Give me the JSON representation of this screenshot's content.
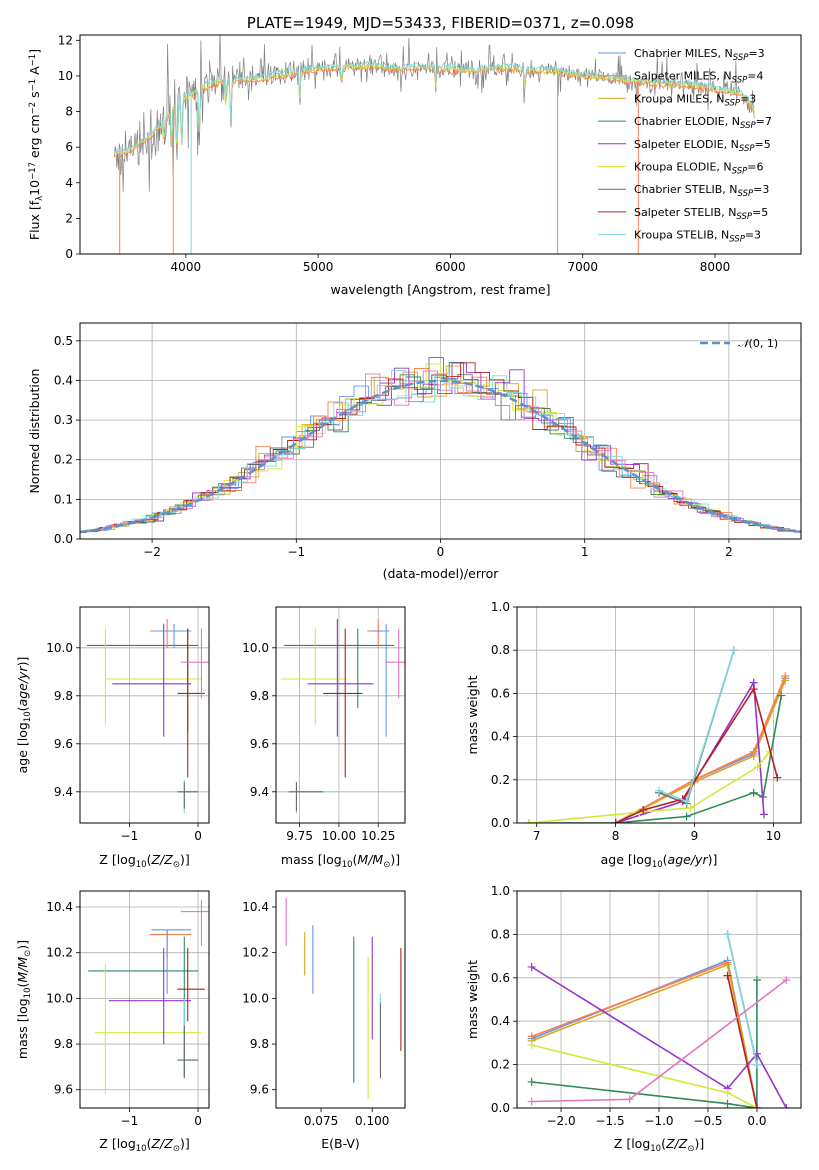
{
  "colors": {
    "chabrier_miles": "#6495ed",
    "salpeter_miles": "#ff7f50",
    "kroupa_miles": "#daa520",
    "chabrier_elodie": "#2e8b57",
    "salpeter_elodie": "#9932cc",
    "kroupa_elodie": "#d4e83c",
    "chabrier_stelib": "#6b6b6b",
    "salpeter_stelib": "#b22222",
    "kroupa_stelib": "#7fd8de",
    "pink": "#e377c2",
    "normal": "#5b8fd6"
  },
  "chart_data": [
    {
      "id": "spectrum",
      "type": "line",
      "title": "PLATE=1949, MJD=53433, FIBERID=0371, z=0.098",
      "xlabel": "wavelength [Angstrom, rest frame]",
      "ylabel": "Flux [fλ10⁻¹⁷ erg cm⁻² s⁻¹ A⁻¹]",
      "xlim": [
        3200,
        8650
      ],
      "ylim": [
        0,
        12.3
      ],
      "xticks": [
        4000,
        5000,
        6000,
        7000,
        8000
      ],
      "yticks": [
        0,
        2,
        4,
        6,
        8,
        10,
        12
      ],
      "grid": false,
      "legend_position": "right",
      "continuum": [
        [
          3460,
          5.6
        ],
        [
          3550,
          5.8
        ],
        [
          3700,
          6.4
        ],
        [
          3850,
          7.6
        ],
        [
          3950,
          8.6
        ],
        [
          4050,
          9.0
        ],
        [
          4200,
          9.6
        ],
        [
          4400,
          9.8
        ],
        [
          4600,
          9.9
        ],
        [
          4800,
          10.2
        ],
        [
          5000,
          10.4
        ],
        [
          5200,
          10.5
        ],
        [
          5400,
          10.6
        ],
        [
          5600,
          10.4
        ],
        [
          5800,
          10.5
        ],
        [
          6000,
          10.4
        ],
        [
          6200,
          10.3
        ],
        [
          6400,
          10.5
        ],
        [
          6600,
          10.3
        ],
        [
          6800,
          10.3
        ],
        [
          7000,
          10.0
        ],
        [
          7200,
          9.9
        ],
        [
          7400,
          9.7
        ],
        [
          7600,
          9.6
        ],
        [
          7800,
          9.5
        ],
        [
          8000,
          9.3
        ],
        [
          8200,
          9.0
        ],
        [
          8300,
          8.0
        ]
      ],
      "legend": [
        "Chabrier MILES, N_SSP=3",
        "Salpeter MILES, N_SSP=4",
        "Kroupa MILES, N_SSP=3",
        "Chabrier ELODIE, N_SSP=7",
        "Salpeter ELODIE, N_SSP=5",
        "Kroupa ELODIE, N_SSP=6",
        "Chabrier STELIB, N_SSP=3",
        "Salpeter STELIB, N_SSP=5",
        "Kroupa STELIB, N_SSP=3"
      ]
    },
    {
      "id": "residuals",
      "type": "line",
      "xlabel": "(data-model)/error",
      "ylabel": "Normed distribution",
      "xlim": [
        -2.5,
        2.5
      ],
      "ylim": [
        0,
        0.545
      ],
      "xticks": [
        -2,
        -1,
        0,
        1,
        2
      ],
      "yticks": [
        0.0,
        0.1,
        0.2,
        0.3,
        0.4,
        0.5
      ],
      "grid": true,
      "legend": [
        "N(0, 1)"
      ],
      "legend_position": "top-right",
      "model": "normal(0,1)"
    },
    {
      "id": "age_vs_Z",
      "type": "scatter",
      "xlabel": "Z [log₁₀(Z/Z⊙)]",
      "ylabel": "age  [log₁₀(age/yr)]",
      "xlim": [
        -1.72,
        0.16
      ],
      "ylim": [
        9.27,
        10.17
      ],
      "xticks": [
        -1,
        0
      ],
      "yticks": [
        9.4,
        9.6,
        9.8,
        10.0
      ],
      "grid": true
    },
    {
      "id": "age_vs_mass",
      "type": "scatter",
      "xlabel": "mass [log₁₀(M/M⊙)]",
      "xlim": [
        9.6,
        10.42
      ],
      "ylim": [
        9.27,
        10.17
      ],
      "xticks": [
        9.75,
        10.0,
        10.25
      ],
      "xticklabels": [
        "9.75",
        "10.00",
        "10.25"
      ],
      "yticks": [
        9.4,
        9.6,
        9.8,
        10.0
      ],
      "grid": true
    },
    {
      "id": "weight_vs_age",
      "type": "line",
      "xlabel": "age  [log₁₀(age/yr)]",
      "ylabel": "mass weight",
      "xlim": [
        6.75,
        10.35
      ],
      "ylim": [
        0,
        1.0
      ],
      "xticks": [
        7,
        8,
        9,
        10
      ],
      "yticks": [
        0.0,
        0.2,
        0.4,
        0.6,
        0.8,
        1.0
      ],
      "grid": true,
      "series": [
        {
          "color": "chabrier_miles",
          "x": [
            8.0,
            9.0,
            9.75,
            10.15
          ],
          "y": [
            0.0,
            0.2,
            0.32,
            0.67
          ]
        },
        {
          "color": "salpeter_miles",
          "x": [
            8.0,
            9.0,
            9.75,
            10.15
          ],
          "y": [
            0.0,
            0.2,
            0.33,
            0.68
          ]
        },
        {
          "color": "kroupa_miles",
          "x": [
            8.0,
            9.0,
            9.75,
            10.15
          ],
          "y": [
            0.0,
            0.19,
            0.31,
            0.66
          ]
        },
        {
          "color": "chabrier_elodie",
          "x": [
            6.9,
            8.0,
            8.9,
            9.75,
            9.87,
            10.1
          ],
          "y": [
            0.0,
            0.0,
            0.03,
            0.14,
            0.12,
            0.59
          ]
        },
        {
          "color": "salpeter_elodie",
          "x": [
            8.0,
            8.85,
            9.75,
            9.88
          ],
          "y": [
            0.0,
            0.1,
            0.65,
            0.04
          ]
        },
        {
          "color": "kroupa_elodie",
          "x": [
            6.9,
            8.3,
            8.95,
            9.8,
            9.95
          ],
          "y": [
            0.0,
            0.05,
            0.07,
            0.26,
            0.33
          ]
        },
        {
          "color": "chabrier_stelib",
          "x": [
            8.55,
            8.9,
            9.5
          ],
          "y": [
            0.14,
            0.09,
            0.8
          ]
        },
        {
          "color": "salpeter_stelib",
          "x": [
            8.0,
            8.35,
            8.85,
            9.75,
            10.05
          ],
          "y": [
            0.0,
            0.06,
            0.11,
            0.62,
            0.21
          ]
        },
        {
          "color": "kroupa_stelib",
          "x": [
            8.55,
            8.9,
            9.5
          ],
          "y": [
            0.15,
            0.1,
            0.8
          ]
        }
      ]
    },
    {
      "id": "mass_vs_Z",
      "type": "scatter",
      "xlabel": "Z [log₁₀(Z/Z⊙)]",
      "ylabel": "mass [log₁₀(M/M⊙)]",
      "xlim": [
        -1.72,
        0.16
      ],
      "ylim": [
        9.52,
        10.47
      ],
      "xticks": [
        -1,
        0
      ],
      "yticks": [
        9.6,
        9.8,
        10.0,
        10.2,
        10.4
      ],
      "grid": true
    },
    {
      "id": "mass_vs_EBV",
      "type": "scatter",
      "xlabel": "E(B-V)",
      "xlim": [
        0.053,
        0.116
      ],
      "ylim": [
        9.52,
        10.47
      ],
      "xticks": [
        0.075,
        0.1
      ],
      "xticklabels": [
        "0.075",
        "0.100"
      ],
      "yticks": [
        9.6,
        9.8,
        10.0,
        10.2,
        10.4
      ],
      "grid": false
    },
    {
      "id": "weight_vs_Z",
      "type": "line",
      "xlabel": "Z [log₁₀(Z/Z⊙)]",
      "ylabel": "mass weight",
      "xlim": [
        -2.45,
        0.45
      ],
      "ylim": [
        0,
        1.0
      ],
      "xticks": [
        -2.0,
        -1.5,
        -1.0,
        -0.5,
        0.0
      ],
      "xticklabels": [
        "−2.0",
        "−1.5",
        "−1.0",
        "−0.5",
        "0.0"
      ],
      "yticks": [
        0.0,
        0.2,
        0.4,
        0.6,
        0.8,
        1.0
      ],
      "grid": true,
      "series": [
        {
          "color": "chabrier_miles",
          "x": [
            -2.3,
            -0.3,
            0.0
          ],
          "y": [
            0.32,
            0.68,
            0.0
          ]
        },
        {
          "color": "salpeter_miles",
          "x": [
            -2.3,
            -0.3,
            0.0
          ],
          "y": [
            0.33,
            0.67,
            0.0
          ]
        },
        {
          "color": "kroupa_miles",
          "x": [
            -2.3,
            -0.3,
            0.0
          ],
          "y": [
            0.31,
            0.66,
            0.0
          ]
        },
        {
          "color": "chabrier_elodie",
          "x": [
            -2.3,
            -0.3,
            0.0,
            0.0
          ],
          "y": [
            0.12,
            0.02,
            0.0,
            0.59
          ]
        },
        {
          "color": "salpeter_elodie",
          "x": [
            -2.3,
            -0.3,
            0.0,
            0.3
          ],
          "y": [
            0.65,
            0.09,
            0.25,
            0.0
          ]
        },
        {
          "color": "kroupa_elodie",
          "x": [
            -2.3,
            -0.3,
            0.0
          ],
          "y": [
            0.29,
            0.07,
            0.0
          ]
        },
        {
          "color": "chabrier_stelib",
          "x": [
            -0.3,
            0.0
          ],
          "y": [
            0.8,
            0.2
          ]
        },
        {
          "color": "salpeter_stelib",
          "x": [
            -0.3,
            0.0
          ],
          "y": [
            0.61,
            0.0
          ]
        },
        {
          "color": "kroupa_stelib",
          "x": [
            -0.3,
            0.0
          ],
          "y": [
            0.8,
            0.2
          ]
        },
        {
          "color": "pink",
          "x": [
            -2.3,
            -1.3,
            0.3
          ],
          "y": [
            0.03,
            0.04,
            0.59
          ]
        }
      ]
    }
  ]
}
